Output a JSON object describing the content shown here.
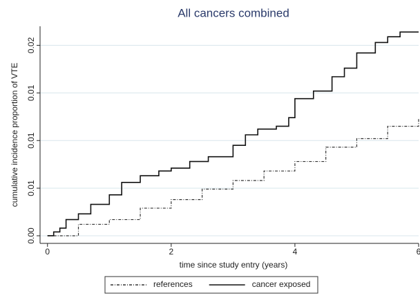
{
  "chart_data": {
    "type": "step-line",
    "title": "All cancers combined",
    "x_label": "time since study entry (years)",
    "y_label": "cumulative incidence proportion of VTE",
    "xlim": [
      -0.12,
      6.0
    ],
    "xticks": [
      0,
      2,
      4,
      6
    ],
    "ylim": [
      -0.0008,
      0.022
    ],
    "yticks": [
      {
        "value": 0,
        "label": "0.00"
      },
      {
        "value": 0.005,
        "label": "0.01"
      },
      0.01,
      {
        "value": 0.015,
        "label": "0.01"
      },
      0.02
    ],
    "grid": true,
    "legend": "bottom",
    "series": [
      {
        "name": "references",
        "color": "#333333",
        "line_style": "dash-dot",
        "x": [
          0,
          0.5,
          1.0,
          1.5,
          2.0,
          2.5,
          3.0,
          3.5,
          4.0,
          4.5,
          5.0,
          5.5,
          6.0
        ],
        "values": [
          0,
          0.0012,
          0.0017,
          0.0029,
          0.0038,
          0.0049,
          0.0058,
          0.0068,
          0.0078,
          0.0093,
          0.0102,
          0.0115,
          0.0124
        ]
      },
      {
        "name": "cancer exposed",
        "color": "#111111",
        "line_style": "solid",
        "x": [
          0,
          0.1,
          0.2,
          0.3,
          0.5,
          0.7,
          1.0,
          1.2,
          1.5,
          1.8,
          2.0,
          2.3,
          2.6,
          3.0,
          3.2,
          3.4,
          3.7,
          3.9,
          4.0,
          4.3,
          4.6,
          4.8,
          5.0,
          5.3,
          5.5,
          5.7,
          6.0
        ],
        "values": [
          0,
          0.0004,
          0.0008,
          0.0017,
          0.0023,
          0.0033,
          0.0043,
          0.0056,
          0.0063,
          0.0068,
          0.0071,
          0.0078,
          0.0083,
          0.0095,
          0.0106,
          0.0112,
          0.0115,
          0.0124,
          0.0144,
          0.0152,
          0.0167,
          0.0176,
          0.0192,
          0.0203,
          0.0209,
          0.0214,
          0.0214
        ]
      }
    ]
  }
}
